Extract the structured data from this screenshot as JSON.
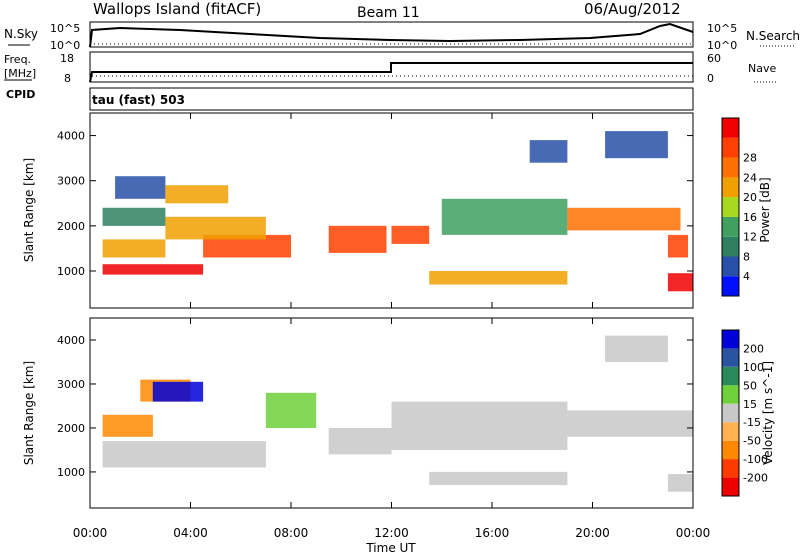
{
  "header": {
    "site": "Wallops Island (fitACF)",
    "beam": "Beam 11",
    "date": "06/Aug/2012"
  },
  "noise_panel": {
    "left_label": "N.Sky",
    "right_label": "N.Search",
    "left_ticks": [
      "10^5",
      "10^0"
    ],
    "right_ticks": [
      "10^5",
      "10^0"
    ]
  },
  "freq_panel": {
    "left_label_1": "Freq.",
    "left_label_2": "[MHz]",
    "cpid_label": "CPID",
    "right_label": "Nave",
    "left_ticks": [
      "18",
      "8"
    ],
    "right_ticks": [
      "60",
      "0"
    ]
  },
  "cpid": {
    "text": "tau (fast) 503"
  },
  "colors": {
    "power_scale": [
      "#0010ff",
      "#2850a8",
      "#2e8060",
      "#40a060",
      "#a8d820",
      "#f0a000",
      "#ff7000",
      "#ff4000",
      "#f00000"
    ],
    "velocity_scale": [
      "#0000d8",
      "#2a54a0",
      "#2a8a5a",
      "#6fd03a",
      "#c8c8c8",
      "#ffb050",
      "#ff8800",
      "#ff3a00",
      "#ee0000"
    ]
  },
  "chart_data": [
    {
      "type": "heatmap",
      "name": "power",
      "ylabel": "Slant Range [km]",
      "ylim": [
        180,
        4500
      ],
      "yticks": [
        "1000",
        "2000",
        "3000",
        "4000"
      ],
      "colorbar_label": "Power [dB]",
      "colorbar_ticks": [
        "4",
        "8",
        "12",
        "16",
        "20",
        "24",
        "28"
      ],
      "colorbar_range": [
        0,
        32
      ],
      "bands": [
        {
          "x": [
            0.5,
            4.5
          ],
          "y": [
            920,
            1150
          ],
          "value": 30
        },
        {
          "x": [
            4.5,
            8
          ],
          "y": [
            1300,
            1800
          ],
          "value": 28
        },
        {
          "x": [
            0.5,
            3
          ],
          "y": [
            1300,
            1700
          ],
          "value": 18
        },
        {
          "x": [
            3,
            7
          ],
          "y": [
            1700,
            2200
          ],
          "value": 18
        },
        {
          "x": [
            0.5,
            3
          ],
          "y": [
            2000,
            2400
          ],
          "value": 10
        },
        {
          "x": [
            1,
            3
          ],
          "y": [
            2600,
            3100
          ],
          "value": 6
        },
        {
          "x": [
            3,
            5.5
          ],
          "y": [
            2500,
            2900
          ],
          "value": 19
        },
        {
          "x": [
            9.5,
            11.8
          ],
          "y": [
            1400,
            2000
          ],
          "value": 28
        },
        {
          "x": [
            12,
            13.5
          ],
          "y": [
            1600,
            2000
          ],
          "value": 26
        },
        {
          "x": [
            13.5,
            19
          ],
          "y": [
            700,
            1000
          ],
          "value": 18
        },
        {
          "x": [
            14,
            19
          ],
          "y": [
            1800,
            2600
          ],
          "value": 14
        },
        {
          "x": [
            19,
            23.5
          ],
          "y": [
            1900,
            2400
          ],
          "value": 22
        },
        {
          "x": [
            23,
            23.8
          ],
          "y": [
            1300,
            1800
          ],
          "value": 28
        },
        {
          "x": [
            23,
            24
          ],
          "y": [
            550,
            950
          ],
          "value": 30
        },
        {
          "x": [
            17.5,
            19
          ],
          "y": [
            3400,
            3900
          ],
          "value": 6
        },
        {
          "x": [
            20.5,
            23
          ],
          "y": [
            3500,
            4100
          ],
          "value": 5
        }
      ]
    },
    {
      "type": "heatmap",
      "name": "velocity",
      "ylabel": "Slant Range [km]",
      "xlabel": "Time UT",
      "xlim": [
        0,
        24
      ],
      "xticks": [
        "00:00",
        "04:00",
        "08:00",
        "12:00",
        "16:00",
        "20:00",
        "00:00"
      ],
      "ylim": [
        180,
        4500
      ],
      "yticks": [
        "1000",
        "2000",
        "3000",
        "4000"
      ],
      "colorbar_label": "Velocity [m s^-1]",
      "colorbar_ticks": [
        "200",
        "100",
        "50",
        "15",
        "-15",
        "-50",
        "-100",
        "-200"
      ],
      "bands": [
        {
          "x": [
            0.5,
            7
          ],
          "y": [
            1100,
            1700
          ],
          "value": 0
        },
        {
          "x": [
            2,
            4
          ],
          "y": [
            2600,
            3100
          ],
          "value": -60
        },
        {
          "x": [
            2.5,
            4.5
          ],
          "y": [
            2600,
            3050
          ],
          "value": 220
        },
        {
          "x": [
            0.5,
            2.5
          ],
          "y": [
            1800,
            2300
          ],
          "value": -60
        },
        {
          "x": [
            7,
            9
          ],
          "y": [
            2000,
            2800
          ],
          "value": 30
        },
        {
          "x": [
            9.5,
            12
          ],
          "y": [
            1400,
            2000
          ],
          "value": 0
        },
        {
          "x": [
            12,
            19
          ],
          "y": [
            1500,
            2600
          ],
          "value": 0
        },
        {
          "x": [
            13.5,
            19
          ],
          "y": [
            700,
            1000
          ],
          "value": 0
        },
        {
          "x": [
            19,
            24
          ],
          "y": [
            1800,
            2400
          ],
          "value": 0
        },
        {
          "x": [
            23,
            24
          ],
          "y": [
            550,
            950
          ],
          "value": 0
        },
        {
          "x": [
            20.5,
            23
          ],
          "y": [
            3500,
            4100
          ],
          "value": 0
        }
      ]
    }
  ]
}
